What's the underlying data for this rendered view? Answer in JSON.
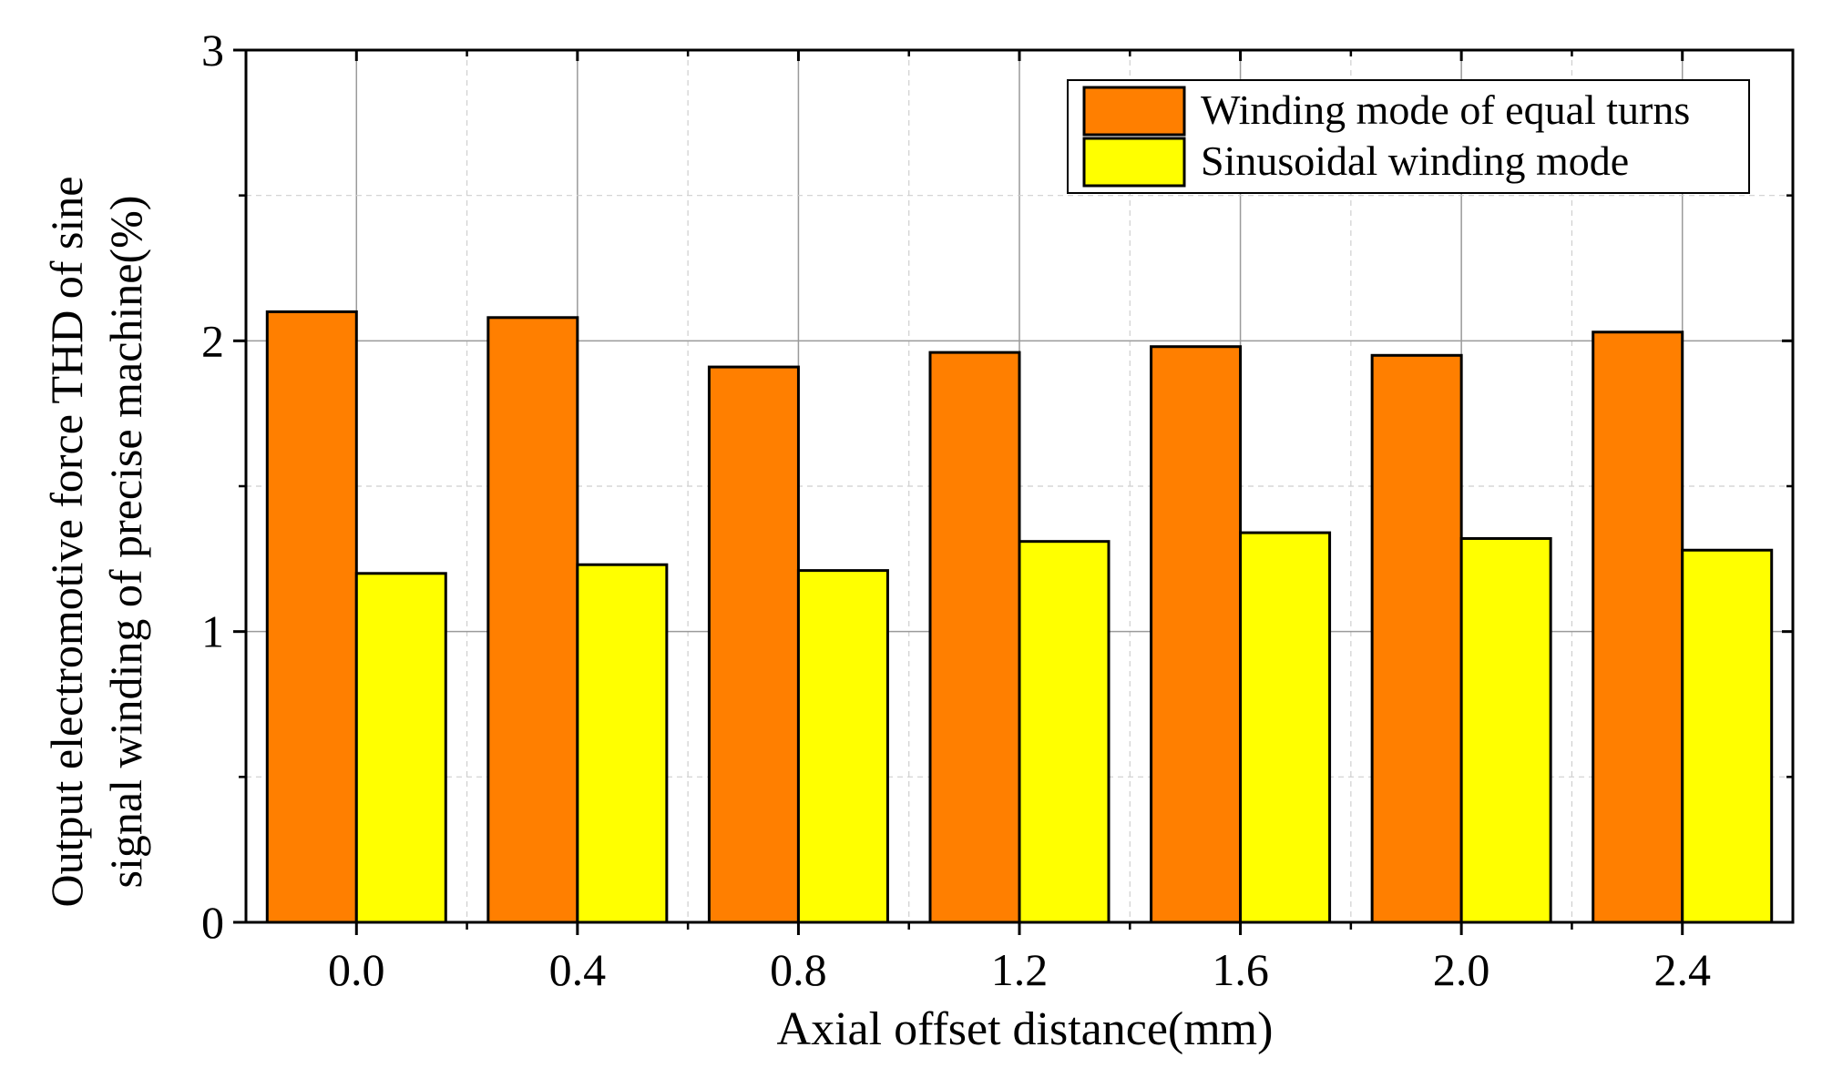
{
  "chart_data": {
    "type": "bar",
    "title": "",
    "xlabel": "Axial offset distance(mm)",
    "ylabel_lines": [
      "Output electromotive force THD of sine",
      "signal winding of precise machine(%)"
    ],
    "categories": [
      "0.0",
      "0.4",
      "0.8",
      "1.2",
      "1.6",
      "2.0",
      "2.4"
    ],
    "series": [
      {
        "name": "Winding mode of equal turns",
        "color": "#ff7f00",
        "values": [
          2.1,
          2.08,
          1.91,
          1.96,
          1.98,
          1.95,
          2.03
        ]
      },
      {
        "name": "Sinusoidal winding mode",
        "color": "#ffff00",
        "values": [
          1.2,
          1.23,
          1.21,
          1.31,
          1.34,
          1.32,
          1.28
        ]
      }
    ],
    "ylim": [
      0,
      3
    ],
    "yticks": [
      "0",
      "1",
      "2",
      "3"
    ],
    "yminor_step": 0.5,
    "grid": true,
    "legend_position": "top-right"
  }
}
